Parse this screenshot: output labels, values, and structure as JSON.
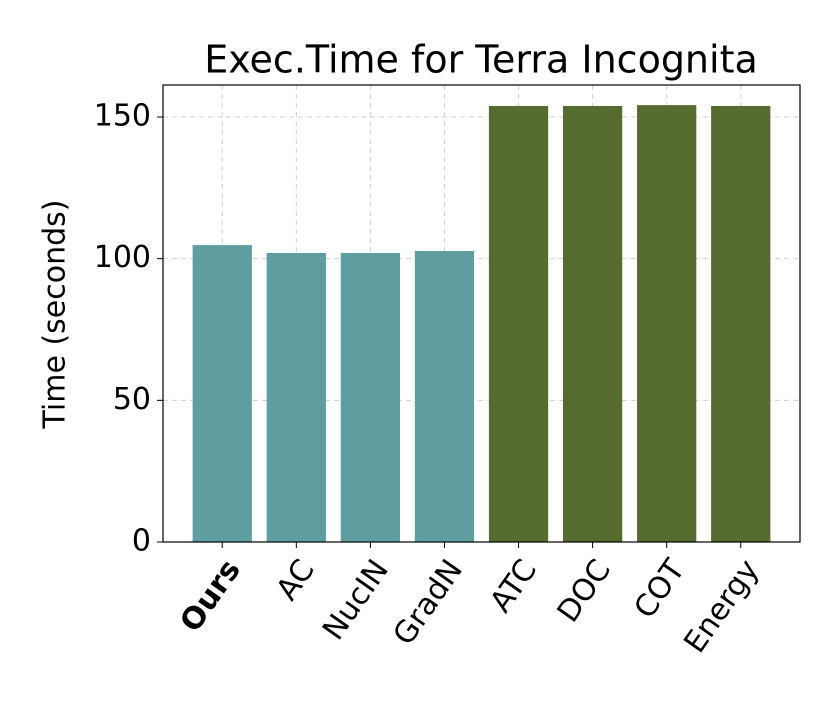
{
  "chart_data": {
    "type": "bar",
    "title": "Exec.Time for Terra Incognita",
    "y_label": "Time (seconds)",
    "categories": [
      "Ours",
      "AC",
      "NucIN",
      "GradN",
      "ATC",
      "DOC",
      "COT",
      "Energy"
    ],
    "values": [
      104.8,
      102,
      102,
      102.7,
      153.9,
      153.9,
      154.2,
      153.9
    ],
    "colors": [
      "#5f9ea0",
      "#5f9ea0",
      "#5f9ea0",
      "#5f9ea0",
      "#556b2f",
      "#556b2f",
      "#556b2f",
      "#556b2f"
    ],
    "ylim": [
      0,
      161.3
    ],
    "yticks": [
      0,
      50,
      100,
      150
    ],
    "grid": true
  }
}
